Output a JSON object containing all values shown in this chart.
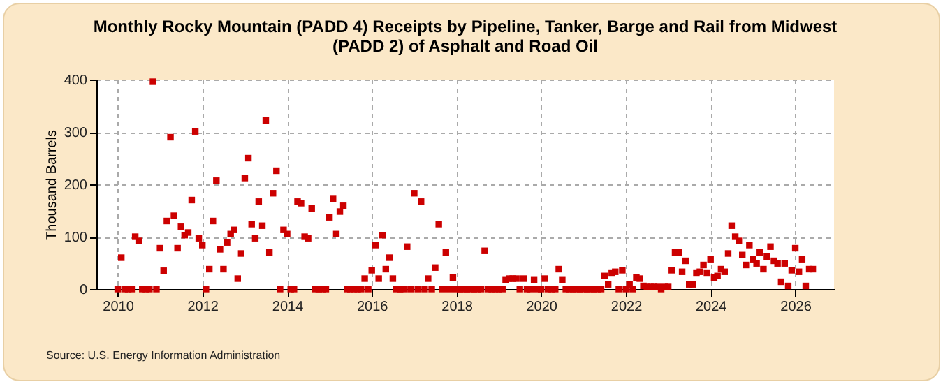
{
  "chart_data": {
    "type": "scatter",
    "title": "Monthly Rocky Mountain (PADD 4) Receipts by Pipeline, Tanker, Barge and Rail from Midwest (PADD 2) of Asphalt and Road Oil",
    "ylabel": "Thousand Barrels",
    "annotations": [
      "Source: U.S. Energy Information Administration"
    ],
    "x": [
      "2010-01",
      "2010-02",
      "2010-03",
      "2010-04",
      "2010-05",
      "2010-06",
      "2010-07",
      "2010-08",
      "2010-09",
      "2010-10",
      "2010-11",
      "2010-12",
      "2011-01",
      "2011-02",
      "2011-03",
      "2011-04",
      "2011-05",
      "2011-06",
      "2011-07",
      "2011-08",
      "2011-09",
      "2011-10",
      "2011-11",
      "2011-12",
      "2012-01",
      "2012-02",
      "2012-03",
      "2012-04",
      "2012-05",
      "2012-06",
      "2012-07",
      "2012-08",
      "2012-09",
      "2012-10",
      "2012-11",
      "2012-12",
      "2013-01",
      "2013-02",
      "2013-03",
      "2013-04",
      "2013-05",
      "2013-06",
      "2013-07",
      "2013-08",
      "2013-09",
      "2013-10",
      "2013-11",
      "2013-12",
      "2014-01",
      "2014-02",
      "2014-03",
      "2014-04",
      "2014-05",
      "2014-06",
      "2014-07",
      "2014-08",
      "2014-09",
      "2014-10",
      "2014-11",
      "2014-12",
      "2015-01",
      "2015-02",
      "2015-03",
      "2015-04",
      "2015-05",
      "2015-06",
      "2015-07",
      "2015-08",
      "2015-09",
      "2015-10",
      "2015-11",
      "2015-12",
      "2016-01",
      "2016-02",
      "2016-03",
      "2016-04",
      "2016-05",
      "2016-06",
      "2016-07",
      "2016-08",
      "2016-09",
      "2016-10",
      "2016-11",
      "2016-12",
      "2017-01",
      "2017-02",
      "2017-03",
      "2017-04",
      "2017-05",
      "2017-06",
      "2017-07",
      "2017-08",
      "2017-09",
      "2017-10",
      "2017-11",
      "2017-12",
      "2018-01",
      "2018-02",
      "2018-03",
      "2018-04",
      "2018-05",
      "2018-06",
      "2018-07",
      "2018-08",
      "2018-09",
      "2018-10",
      "2018-11",
      "2018-12",
      "2019-01",
      "2019-02",
      "2019-03",
      "2019-04",
      "2019-05",
      "2019-06",
      "2019-07",
      "2019-08",
      "2019-09",
      "2019-10",
      "2019-11",
      "2019-12",
      "2020-01",
      "2020-02",
      "2020-03",
      "2020-04",
      "2020-05",
      "2020-06",
      "2020-07",
      "2020-08",
      "2020-09",
      "2020-10",
      "2020-11",
      "2020-12",
      "2021-01",
      "2021-02",
      "2021-03",
      "2021-04",
      "2021-05",
      "2021-06",
      "2021-07",
      "2021-08",
      "2021-09",
      "2021-10",
      "2021-11",
      "2021-12",
      "2022-01",
      "2022-02",
      "2022-03",
      "2022-04",
      "2022-05",
      "2022-06",
      "2022-07",
      "2022-08",
      "2022-09",
      "2022-10",
      "2022-11",
      "2022-12",
      "2023-01",
      "2023-02",
      "2023-03",
      "2023-04",
      "2023-05",
      "2023-06",
      "2023-07",
      "2023-08",
      "2023-09",
      "2023-10",
      "2023-11",
      "2023-12",
      "2024-01",
      "2024-02",
      "2024-03",
      "2024-04",
      "2024-05",
      "2024-06",
      "2024-07",
      "2024-08",
      "2024-09",
      "2024-10",
      "2024-11",
      "2024-12",
      "2025-01",
      "2025-02",
      "2025-03",
      "2025-04",
      "2025-05",
      "2025-06",
      "2025-07",
      "2025-08",
      "2025-09",
      "2025-10",
      "2025-11",
      "2025-12",
      "2026-01",
      "2026-02",
      "2026-03",
      "2026-04",
      "2026-05",
      "2026-06"
    ],
    "series": [
      {
        "color": "#cc0000",
        "values": [
          0,
          60,
          0,
          0,
          0,
          100,
          92,
          0,
          0,
          0,
          396,
          0,
          78,
          35,
          130,
          290,
          140,
          78,
          119,
          103,
          108,
          170,
          301,
          97,
          84,
          0,
          38,
          130,
          207,
          76,
          38,
          89,
          105,
          113,
          20,
          68,
          212,
          250,
          124,
          97,
          167,
          121,
          322,
          70,
          183,
          226,
          0,
          113,
          105,
          0,
          0,
          167,
          164,
          100,
          97,
          154,
          0,
          0,
          0,
          0,
          137,
          172,
          105,
          148,
          159,
          0,
          0,
          0,
          0,
          0,
          20,
          0,
          36,
          84,
          20,
          103,
          38,
          60,
          20,
          0,
          0,
          0,
          81,
          0,
          183,
          0,
          167,
          0,
          20,
          0,
          41,
          124,
          0,
          70,
          0,
          22,
          0,
          0,
          0,
          0,
          0,
          0,
          0,
          0,
          73,
          0,
          0,
          0,
          0,
          0,
          17,
          20,
          20,
          20,
          0,
          20,
          0,
          0,
          17,
          0,
          0,
          20,
          0,
          0,
          0,
          38,
          17,
          0,
          0,
          0,
          0,
          0,
          0,
          0,
          0,
          0,
          0,
          0,
          25,
          9,
          30,
          33,
          0,
          36,
          0,
          9,
          0,
          22,
          20,
          6,
          4,
          4,
          4,
          4,
          0,
          4,
          4,
          36,
          70,
          70,
          33,
          54,
          9,
          9,
          30,
          33,
          46,
          30,
          57,
          22,
          25,
          38,
          33,
          68,
          121,
          100,
          92,
          65,
          46,
          84,
          57,
          49,
          70,
          38,
          62,
          81,
          54,
          49,
          14,
          49,
          6,
          36,
          78,
          33,
          57,
          6,
          38,
          38
        ]
      }
    ],
    "xlim": [
      "2009-07",
      "2026-12"
    ],
    "xticks": [
      "2010",
      "2012",
      "2014",
      "2016",
      "2018",
      "2020",
      "2022",
      "2024",
      "2026"
    ],
    "ylim": [
      0,
      400
    ],
    "yticks": [
      0,
      100,
      200,
      300,
      400
    ],
    "grid": true,
    "marker": "square"
  }
}
